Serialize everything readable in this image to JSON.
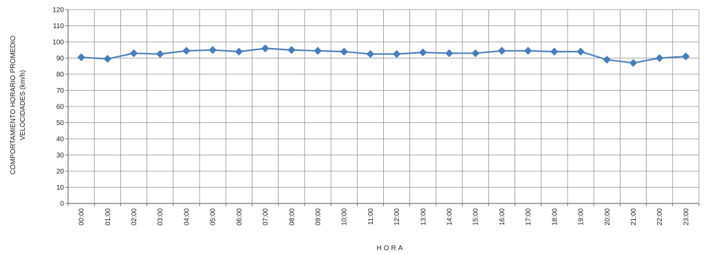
{
  "chart_data": {
    "type": "line",
    "title": "",
    "xlabel": "HORA",
    "ylabel_lines": [
      "COMPORTAMIENTO  HORARIO PROMEDIO",
      "VELOCIDADES  (km/h)"
    ],
    "categories": [
      "00:00",
      "01:00",
      "02:00",
      "03:00",
      "04:00",
      "05:00",
      "06:00",
      "07:00",
      "08:00",
      "09:00",
      "10:00",
      "11:00",
      "12:00",
      "13:00",
      "14:00",
      "15:00",
      "16:00",
      "17:00",
      "18:00",
      "19:00",
      "20:00",
      "21:00",
      "22:00",
      "23:00"
    ],
    "series": [
      {
        "values": [
          90.5,
          89.5,
          93,
          92.5,
          94.5,
          95,
          94,
          96,
          95,
          94.5,
          94,
          92.5,
          92.5,
          93.5,
          93,
          93,
          94.5,
          94.5,
          94,
          94,
          89,
          87,
          90,
          91
        ]
      }
    ],
    "yticks": [
      0,
      10,
      20,
      30,
      40,
      50,
      60,
      70,
      80,
      90,
      100,
      110,
      120
    ],
    "ylim": [
      0,
      120
    ],
    "grid": true,
    "legend": "none",
    "colors": {
      "line": "#4f81bd",
      "marker": "#4a7ebb",
      "grid": "#8c8c8c",
      "axis": "#555555"
    }
  }
}
